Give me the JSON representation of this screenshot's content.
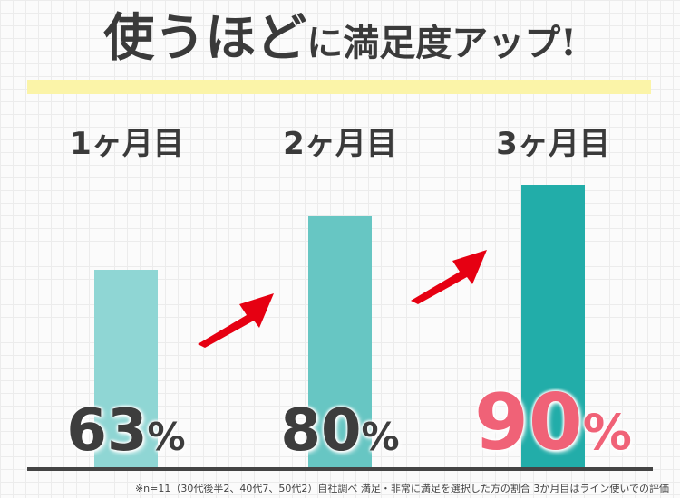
{
  "title": {
    "main": "使うほど",
    "rest": "に満足度アップ!"
  },
  "chart_data": {
    "type": "bar",
    "categories": [
      "1ヶ月目",
      "2ヶ月目",
      "3ヶ月目"
    ],
    "values": [
      63,
      80,
      90
    ],
    "value_labels": [
      {
        "num": "63",
        "unit": "%"
      },
      {
        "num": "80",
        "unit": "%"
      },
      {
        "num": "90",
        "unit": "%"
      }
    ],
    "ylim": [
      0,
      100
    ],
    "bar_colors": [
      "#8fd6d4",
      "#67c6c3",
      "#22ada9"
    ],
    "label_colors": [
      "#3d3d3d",
      "#3d3d3d",
      "#f06277"
    ],
    "arrow_color": "#e60012"
  },
  "footnote": "※n=11（30代後半2、40代7、50代2）自社調べ 満足・非常に満足を選択した方の割合 3か月目はライン使いでの評価"
}
